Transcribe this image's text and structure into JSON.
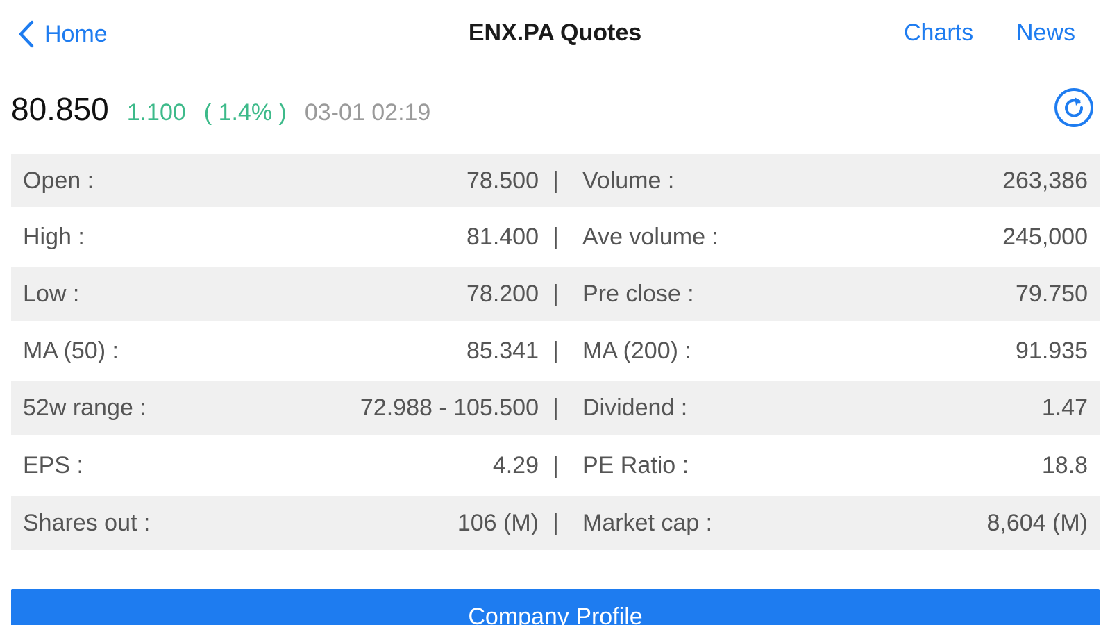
{
  "nav": {
    "back_label": "Home",
    "title": "ENX.PA Quotes",
    "charts_label": "Charts",
    "news_label": "News"
  },
  "quote": {
    "price": "80.850",
    "change": "1.100",
    "change_pct": "( 1.4% )",
    "time": "03-01 02:19"
  },
  "colors": {
    "accent": "#1e7cf0",
    "positive": "#3dba8a",
    "row_shade": "#f0f0f0"
  },
  "separator": "|",
  "rows": [
    {
      "left_label": "Open :",
      "left_value": "78.500",
      "right_label": "Volume :",
      "right_value": "263,386"
    },
    {
      "left_label": "High :",
      "left_value": "81.400",
      "right_label": "Ave volume :",
      "right_value": "245,000"
    },
    {
      "left_label": "Low :",
      "left_value": "78.200",
      "right_label": "Pre close :",
      "right_value": "79.750"
    },
    {
      "left_label": "MA (50) :",
      "left_value": "85.341",
      "right_label": "MA (200) :",
      "right_value": "91.935"
    },
    {
      "left_label": "52w range :",
      "left_value": "72.988 - 105.500",
      "right_label": "Dividend :",
      "right_value": "1.47"
    },
    {
      "left_label": "EPS :",
      "left_value": "4.29",
      "right_label": "PE Ratio :",
      "right_value": "18.8"
    },
    {
      "left_label": "Shares out :",
      "left_value": "106 (M)",
      "right_label": "Market cap :",
      "right_value": "8,604 (M)"
    }
  ],
  "profile_button_label": "Company Profile"
}
